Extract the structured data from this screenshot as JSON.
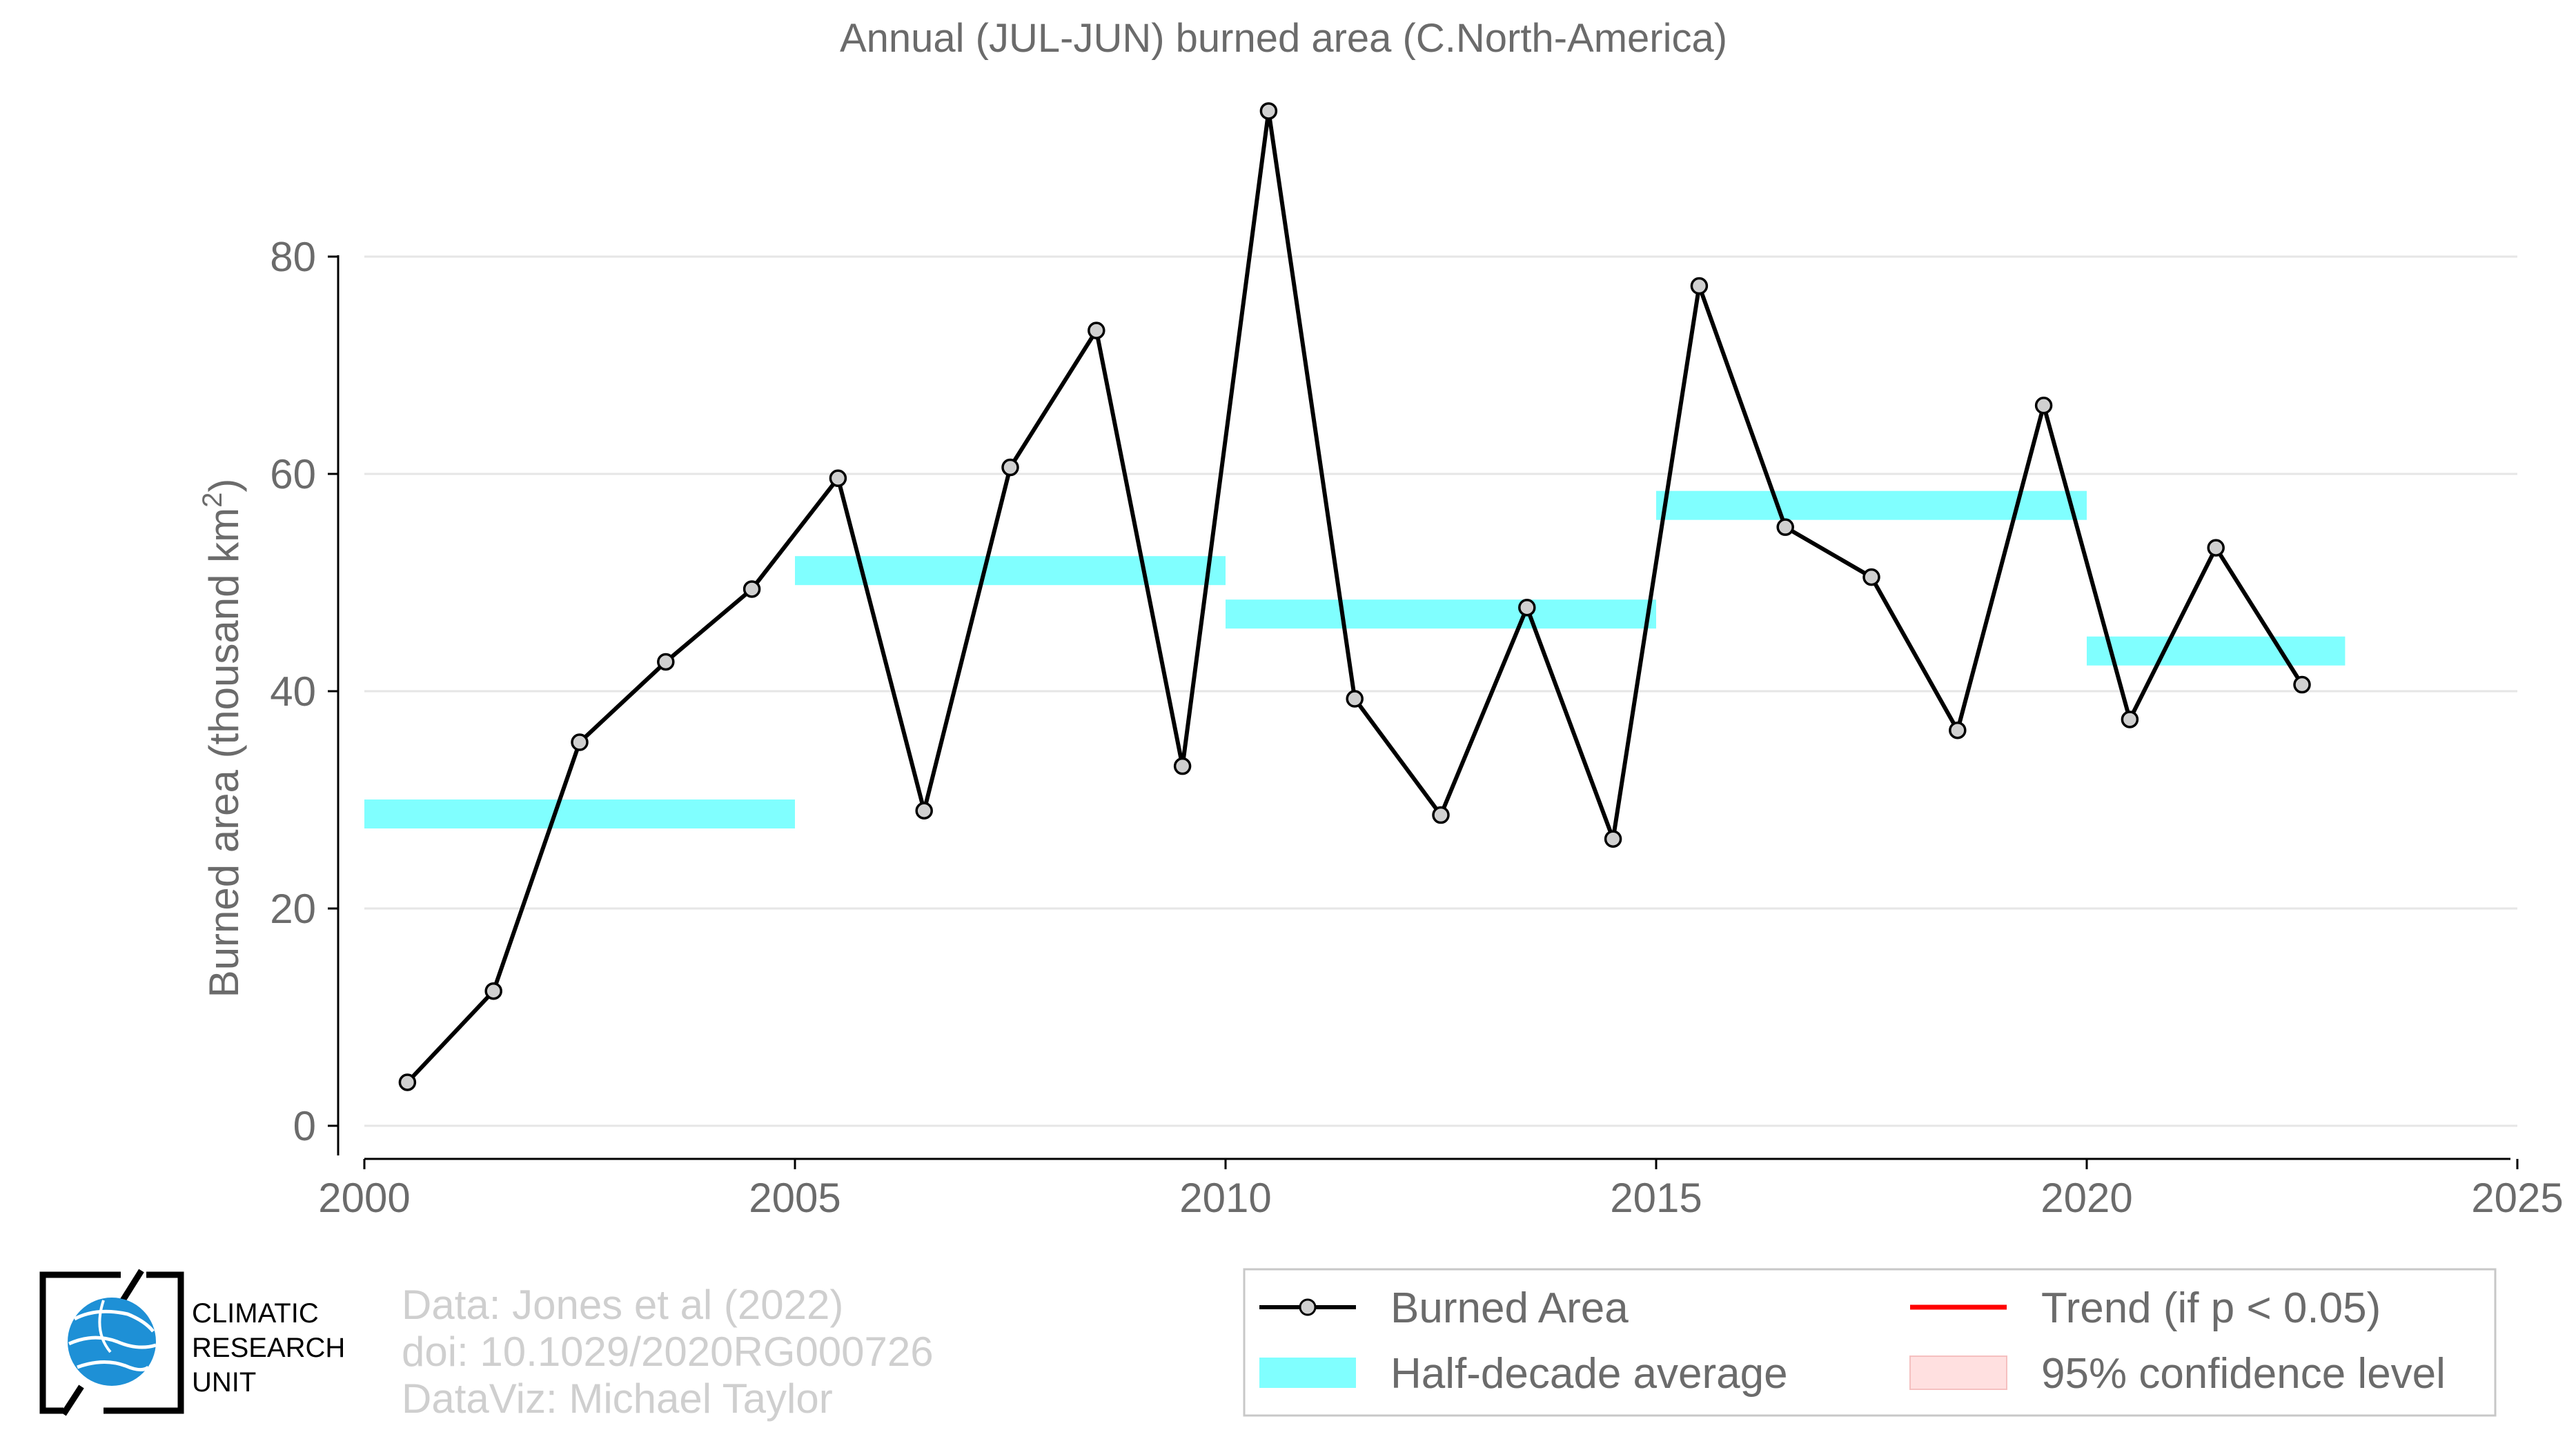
{
  "chart_data": {
    "type": "line",
    "title": "Annual (JUL-JUN) burned area (C.North-America)",
    "ylabel": "Burned area (thousand km",
    "ylabel_sup": "2",
    "ylabel_close": ")",
    "xlim": [
      2000,
      2025
    ],
    "ylim": [
      -3,
      93
    ],
    "xticks": [
      "2000",
      "2005",
      "2010",
      "2015",
      "2020",
      "2025"
    ],
    "yticks": [
      "0",
      "20",
      "40",
      "60",
      "80"
    ],
    "grid": "horizontal",
    "legend_position": "bottom-right",
    "series": [
      {
        "name": "Burned Area",
        "color": "#000000",
        "marker_fill": "#d0d0d0",
        "x": [
          2000.5,
          2001.5,
          2002.5,
          2003.5,
          2004.5,
          2005.5,
          2006.5,
          2007.5,
          2008.5,
          2009.5,
          2010.5,
          2011.5,
          2012.5,
          2013.5,
          2014.5,
          2015.5,
          2016.5,
          2017.5,
          2018.5,
          2019.5,
          2020.5,
          2021.5,
          2022.5
        ],
        "values": [
          4.0,
          12.4,
          35.3,
          42.7,
          49.4,
          59.6,
          29.0,
          60.6,
          73.2,
          33.1,
          93.4,
          39.3,
          28.6,
          47.7,
          26.4,
          77.3,
          55.1,
          50.5,
          36.4,
          66.3,
          37.4,
          53.2,
          40.6
        ]
      },
      {
        "name": "Half-decade average",
        "color": "#80ffff",
        "segments": [
          {
            "x0": 2000,
            "x1": 2005,
            "value": 28.7
          },
          {
            "x0": 2005,
            "x1": 2010,
            "value": 51.1
          },
          {
            "x0": 2010,
            "x1": 2015,
            "value": 47.1
          },
          {
            "x0": 2015,
            "x1": 2020,
            "value": 57.1
          },
          {
            "x0": 2020,
            "x1": 2023,
            "value": 43.7
          }
        ]
      }
    ],
    "legend": [
      {
        "label": "Burned Area",
        "kind": "line-marker",
        "color": "#000000"
      },
      {
        "label": "Trend (if p < 0.05)",
        "kind": "line",
        "color": "#ff0000"
      },
      {
        "label": "Half-decade average",
        "kind": "band",
        "color": "#80ffff"
      },
      {
        "label": "95% confidence level",
        "kind": "box",
        "color": "#ffe0e0"
      }
    ]
  },
  "credits": {
    "line1": "Data: Jones et al (2022)",
    "line2": "doi: 10.1029/2020RG000726",
    "line3": "DataViz: Michael Taylor"
  },
  "logo": {
    "line1": "CLIMATIC",
    "line2": "RESEARCH",
    "line3": "UNIT",
    "icon": "globe-icon",
    "accent": "#1e90d6"
  }
}
